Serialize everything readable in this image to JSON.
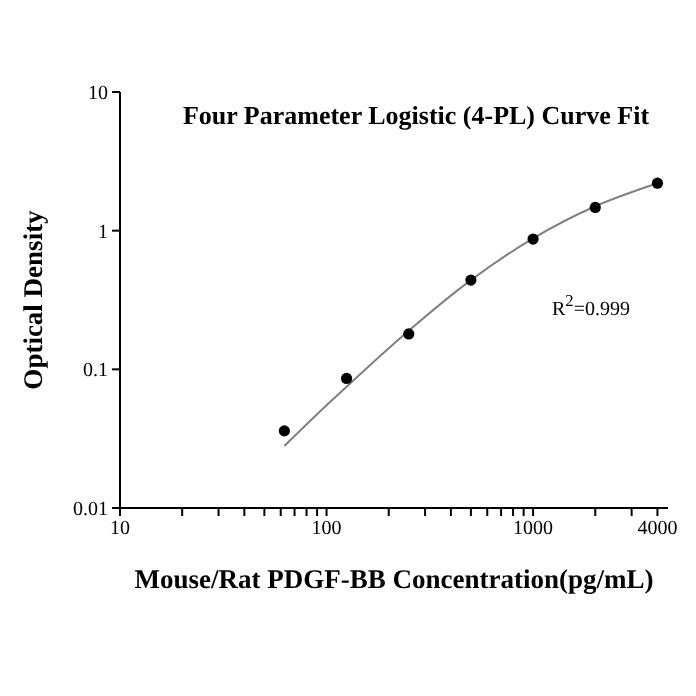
{
  "chart_data": {
    "type": "scatter",
    "title": "Four Parameter Logistic (4-PL) Curve Fit",
    "xlabel": "Mouse/Rat PDGF-BB Concentration(pg/mL)",
    "ylabel": "Optical Density",
    "log": "xy",
    "grid": false,
    "legend": false,
    "xlim": [
      10,
      4500
    ],
    "ylim": [
      0.01,
      10
    ],
    "xticks": [
      10,
      {
        "value": 20,
        "label": null
      },
      {
        "value": 30,
        "label": null
      },
      {
        "value": 40,
        "label": null
      },
      {
        "value": 50,
        "label": null
      },
      {
        "value": 60,
        "label": null
      },
      {
        "value": 70,
        "label": null
      },
      {
        "value": 80,
        "label": null
      },
      {
        "value": 90,
        "label": null
      },
      100,
      {
        "value": 200,
        "label": null
      },
      {
        "value": 300,
        "label": null
      },
      {
        "value": 400,
        "label": null
      },
      {
        "value": 500,
        "label": null
      },
      {
        "value": 600,
        "label": null
      },
      {
        "value": 700,
        "label": null
      },
      {
        "value": 800,
        "label": null
      },
      {
        "value": 900,
        "label": null
      },
      1000,
      {
        "value": 2000,
        "label": null
      },
      {
        "value": 3000,
        "label": null
      },
      4000
    ],
    "yticks": [
      0.01,
      0.1,
      1,
      10
    ],
    "annotations": [
      "R$^{2}$=0.999"
    ],
    "series": [
      {
        "type": "line",
        "color": "#808080",
        "marker": "none",
        "line_style": "solid",
        "x": [
          62.5,
          100,
          125,
          250,
          500,
          1000,
          2000,
          4000
        ],
        "values": [
          0.028,
          0.055,
          0.075,
          0.19,
          0.44,
          0.88,
          1.5,
          2.2
        ]
      },
      {
        "color": "#000000",
        "marker": "circle",
        "x": [
          62.5,
          125,
          250,
          500,
          1000,
          2000,
          4000
        ],
        "values": [
          0.036,
          0.086,
          0.18,
          0.44,
          0.87,
          1.47,
          2.2
        ]
      }
    ]
  }
}
